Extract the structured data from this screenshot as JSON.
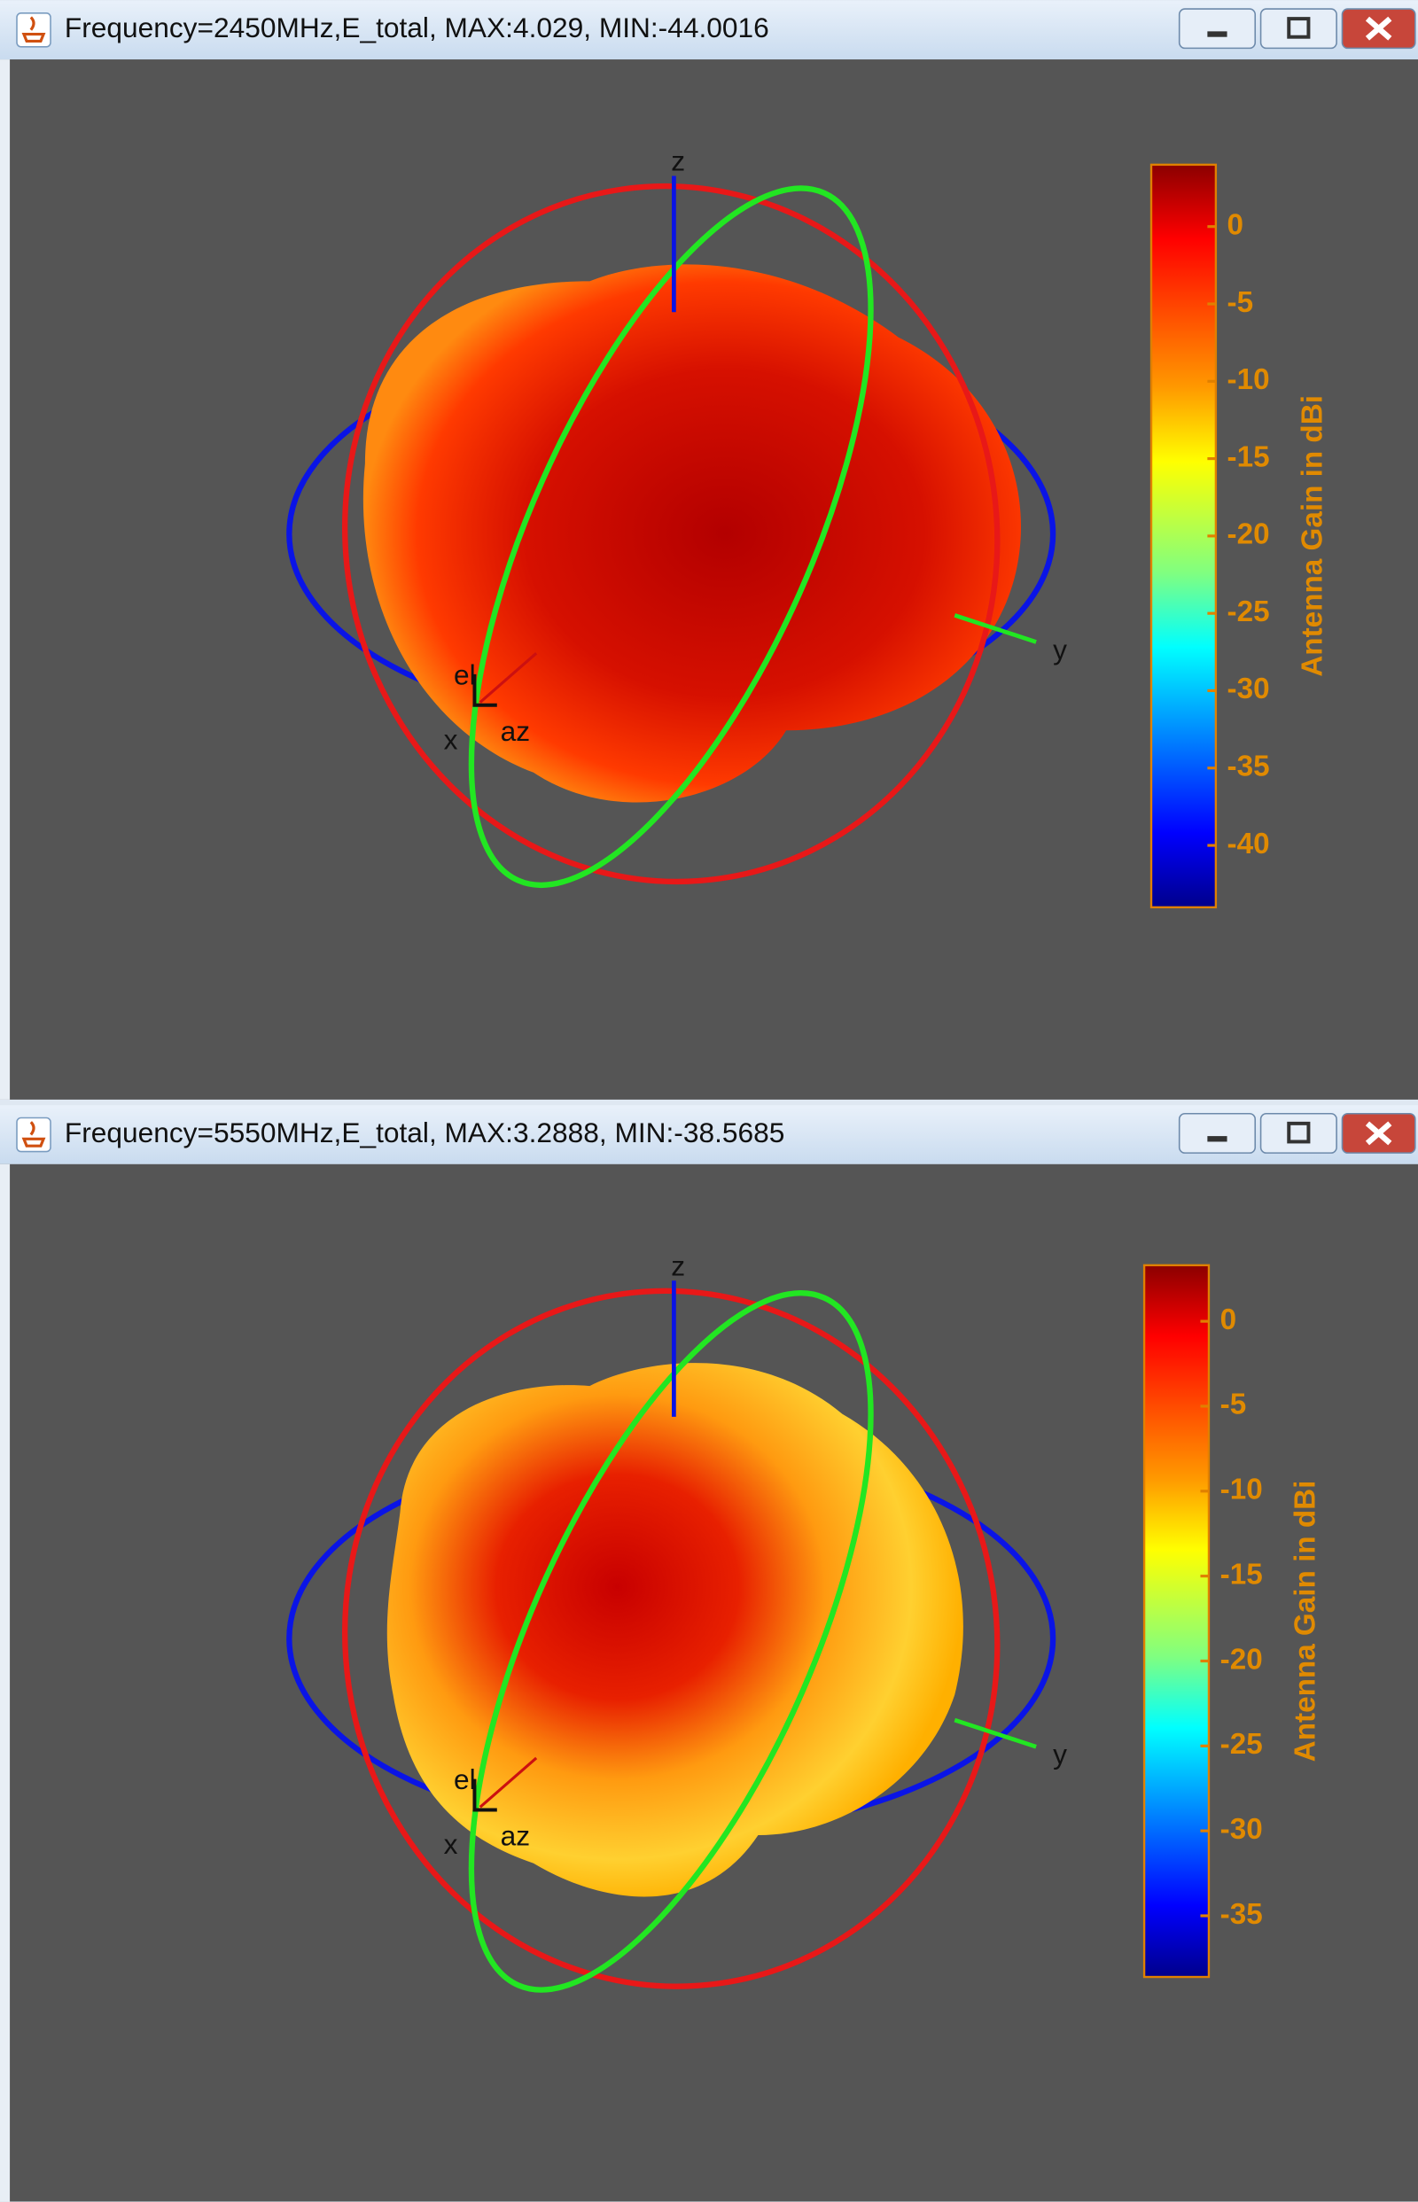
{
  "windows": [
    {
      "title": "Frequency=2450MHz,E_total, MAX:4.029, MIN:-44.0016",
      "axis_labels": [
        "z",
        "y",
        "x",
        "el",
        "az"
      ],
      "colorbar": {
        "label": "Antenna Gain in dBi",
        "lim": [
          -44,
          4
        ],
        "ticks": [
          0,
          -5,
          -10,
          -15,
          -20,
          -25,
          -30,
          -35,
          -40
        ]
      }
    },
    {
      "title": "Frequency=5550MHz,E_total, MAX:3.2888, MIN:-38.5685",
      "axis_labels": [
        "z",
        "y",
        "x",
        "el",
        "az"
      ],
      "colorbar": {
        "label": "Antenna Gain in dBi",
        "lim": [
          -38.6,
          3.3
        ],
        "ticks": [
          0,
          -5,
          -10,
          -15,
          -20,
          -25,
          -30,
          -35
        ]
      }
    }
  ]
}
